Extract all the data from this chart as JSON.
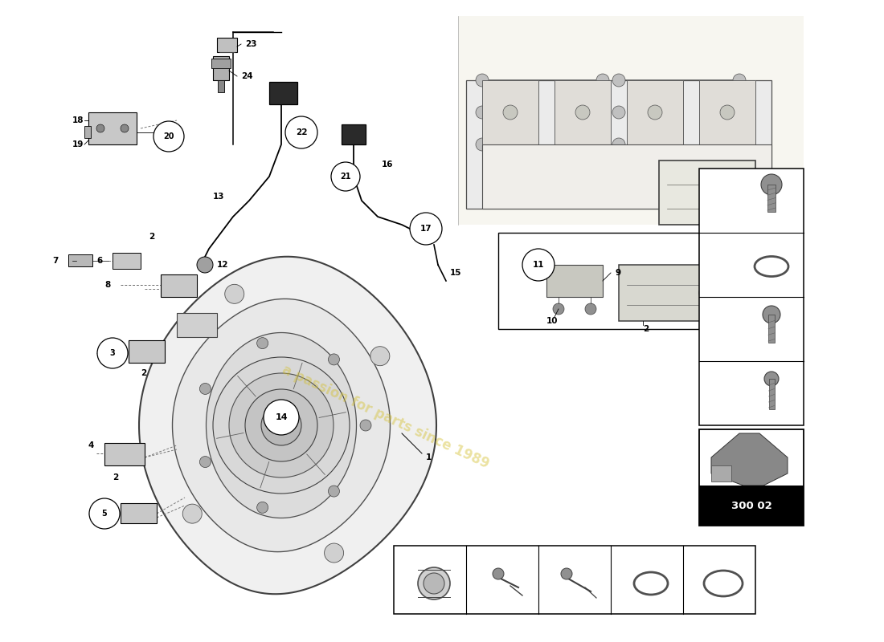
{
  "bg_color": "#ffffff",
  "line_color": "#000000",
  "gray_line": "#555555",
  "light_gray": "#cccccc",
  "medium_gray": "#888888",
  "dark_gray": "#444444",
  "watermark_text": "a passion for parts since 1989",
  "watermark_color": "#d4c030",
  "watermark_alpha": 0.45,
  "watermark_rotation": -25,
  "diagram_number": "300 02",
  "bottom_parts": [
    "17",
    "22",
    "21",
    "11",
    "14"
  ],
  "right_parts": [
    "20",
    "8",
    "5",
    "3"
  ],
  "part_label_fs": 7.5,
  "circle_fs": 7,
  "circle_r": 1.8
}
